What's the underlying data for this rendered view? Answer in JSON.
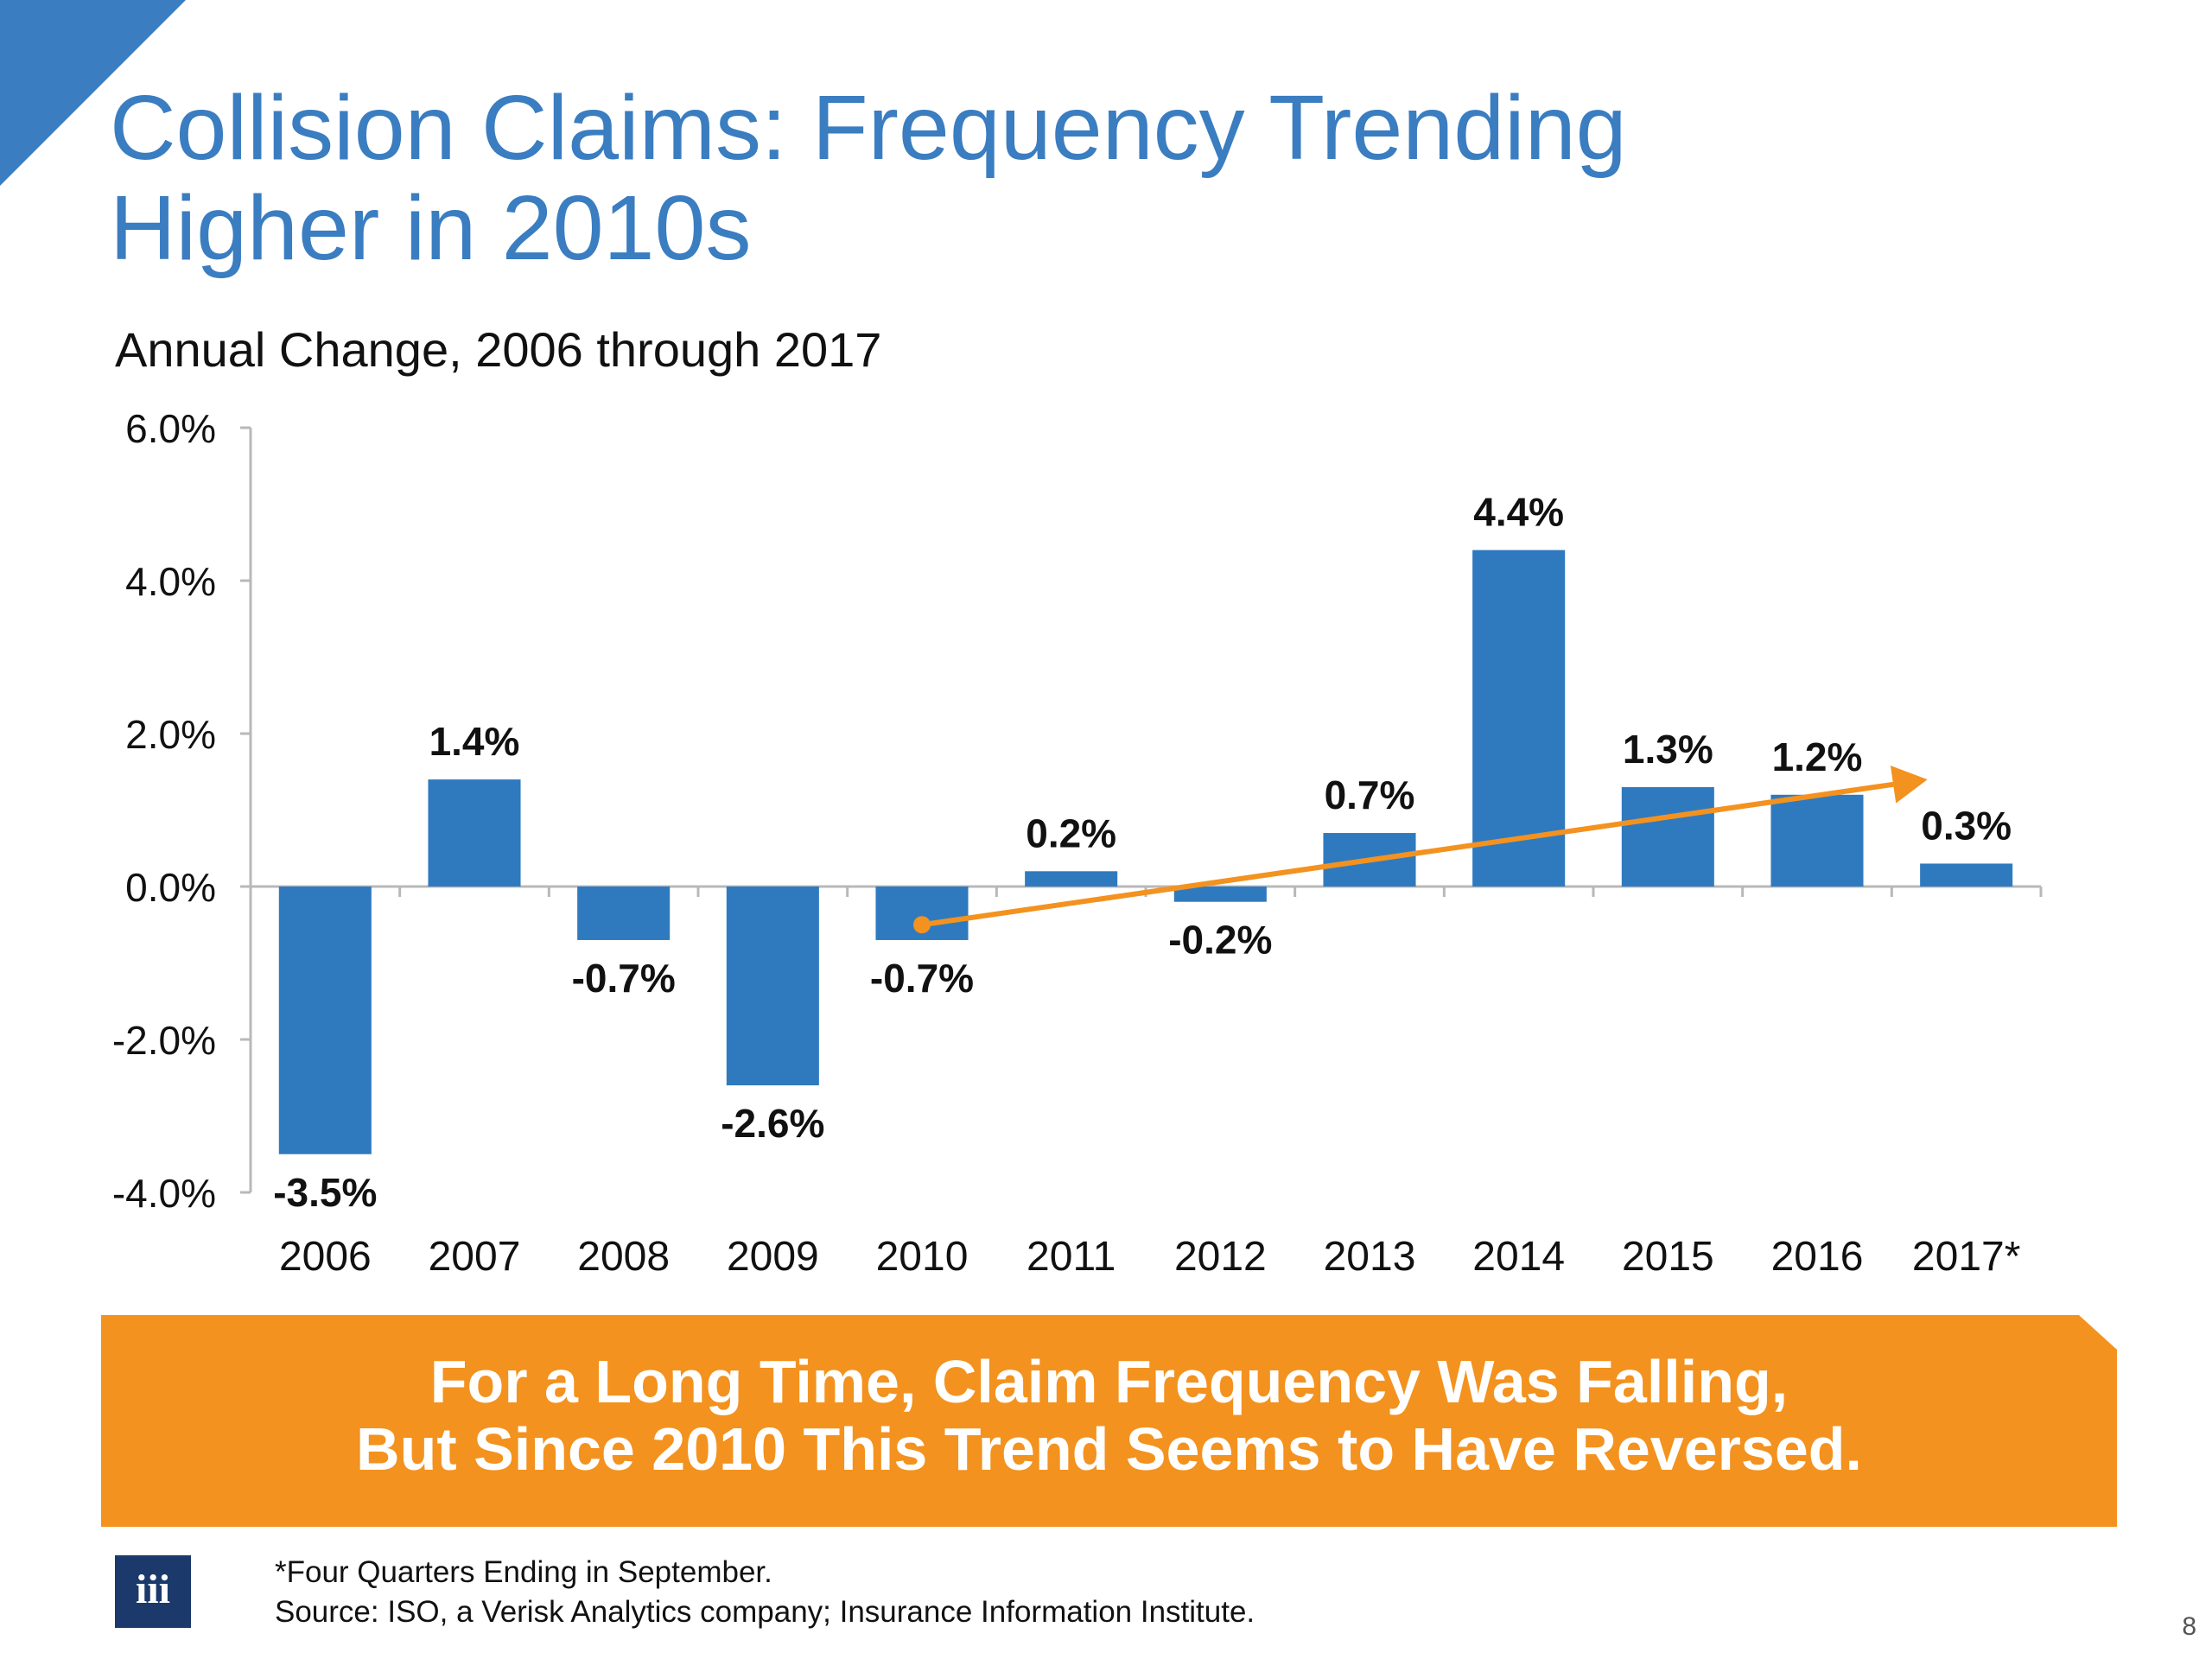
{
  "slide": {
    "title_line1": "Collision Claims: Frequency Trending",
    "title_line2": "Higher in 2010s",
    "callout_line1": "For a Long Time, Claim Frequency Was Falling,",
    "callout_line2": "But Since 2010 This Trend Seems to Have Reversed.",
    "footnote": "*Four Quarters Ending in September.",
    "source": "Source: ISO, a Verisk Analytics company; Insurance Information Institute.",
    "page_number": "8",
    "logo_text": "iii"
  },
  "colors": {
    "accent": "#3a7dc1",
    "bar": "#2f7abf",
    "trend_arrow": "#f3921f",
    "callout": "#f3921f",
    "logo": "#1b3a6b"
  },
  "chart_data": {
    "type": "bar",
    "title": "Annual Change, 2006 through 2017",
    "xlabel": "",
    "ylabel": "",
    "categories": [
      "2006",
      "2007",
      "2008",
      "2009",
      "2010",
      "2011",
      "2012",
      "2013",
      "2014",
      "2015",
      "2016",
      "2017*"
    ],
    "values": [
      -3.5,
      1.4,
      -0.7,
      -2.6,
      -0.7,
      0.2,
      -0.2,
      0.7,
      4.4,
      1.3,
      1.2,
      0.3
    ],
    "data_labels": [
      "-3.5%",
      "1.4%",
      "-0.7%",
      "-2.6%",
      "-0.7%",
      "0.2%",
      "-0.2%",
      "0.7%",
      "4.4%",
      "1.3%",
      "1.2%",
      "0.3%"
    ],
    "ylim": [
      -4,
      6
    ],
    "yticks": [
      -4,
      -2,
      0,
      2,
      4,
      6
    ],
    "ytick_labels": [
      "-4.0%",
      "-2.0%",
      "0.0%",
      "2.0%",
      "4.0%",
      "6.0%"
    ],
    "grid": false,
    "legend": "none",
    "trend_arrow": {
      "from": {
        "x": "2010",
        "y": -0.5
      },
      "to": {
        "x": "2017*",
        "y": 1.4
      }
    }
  }
}
